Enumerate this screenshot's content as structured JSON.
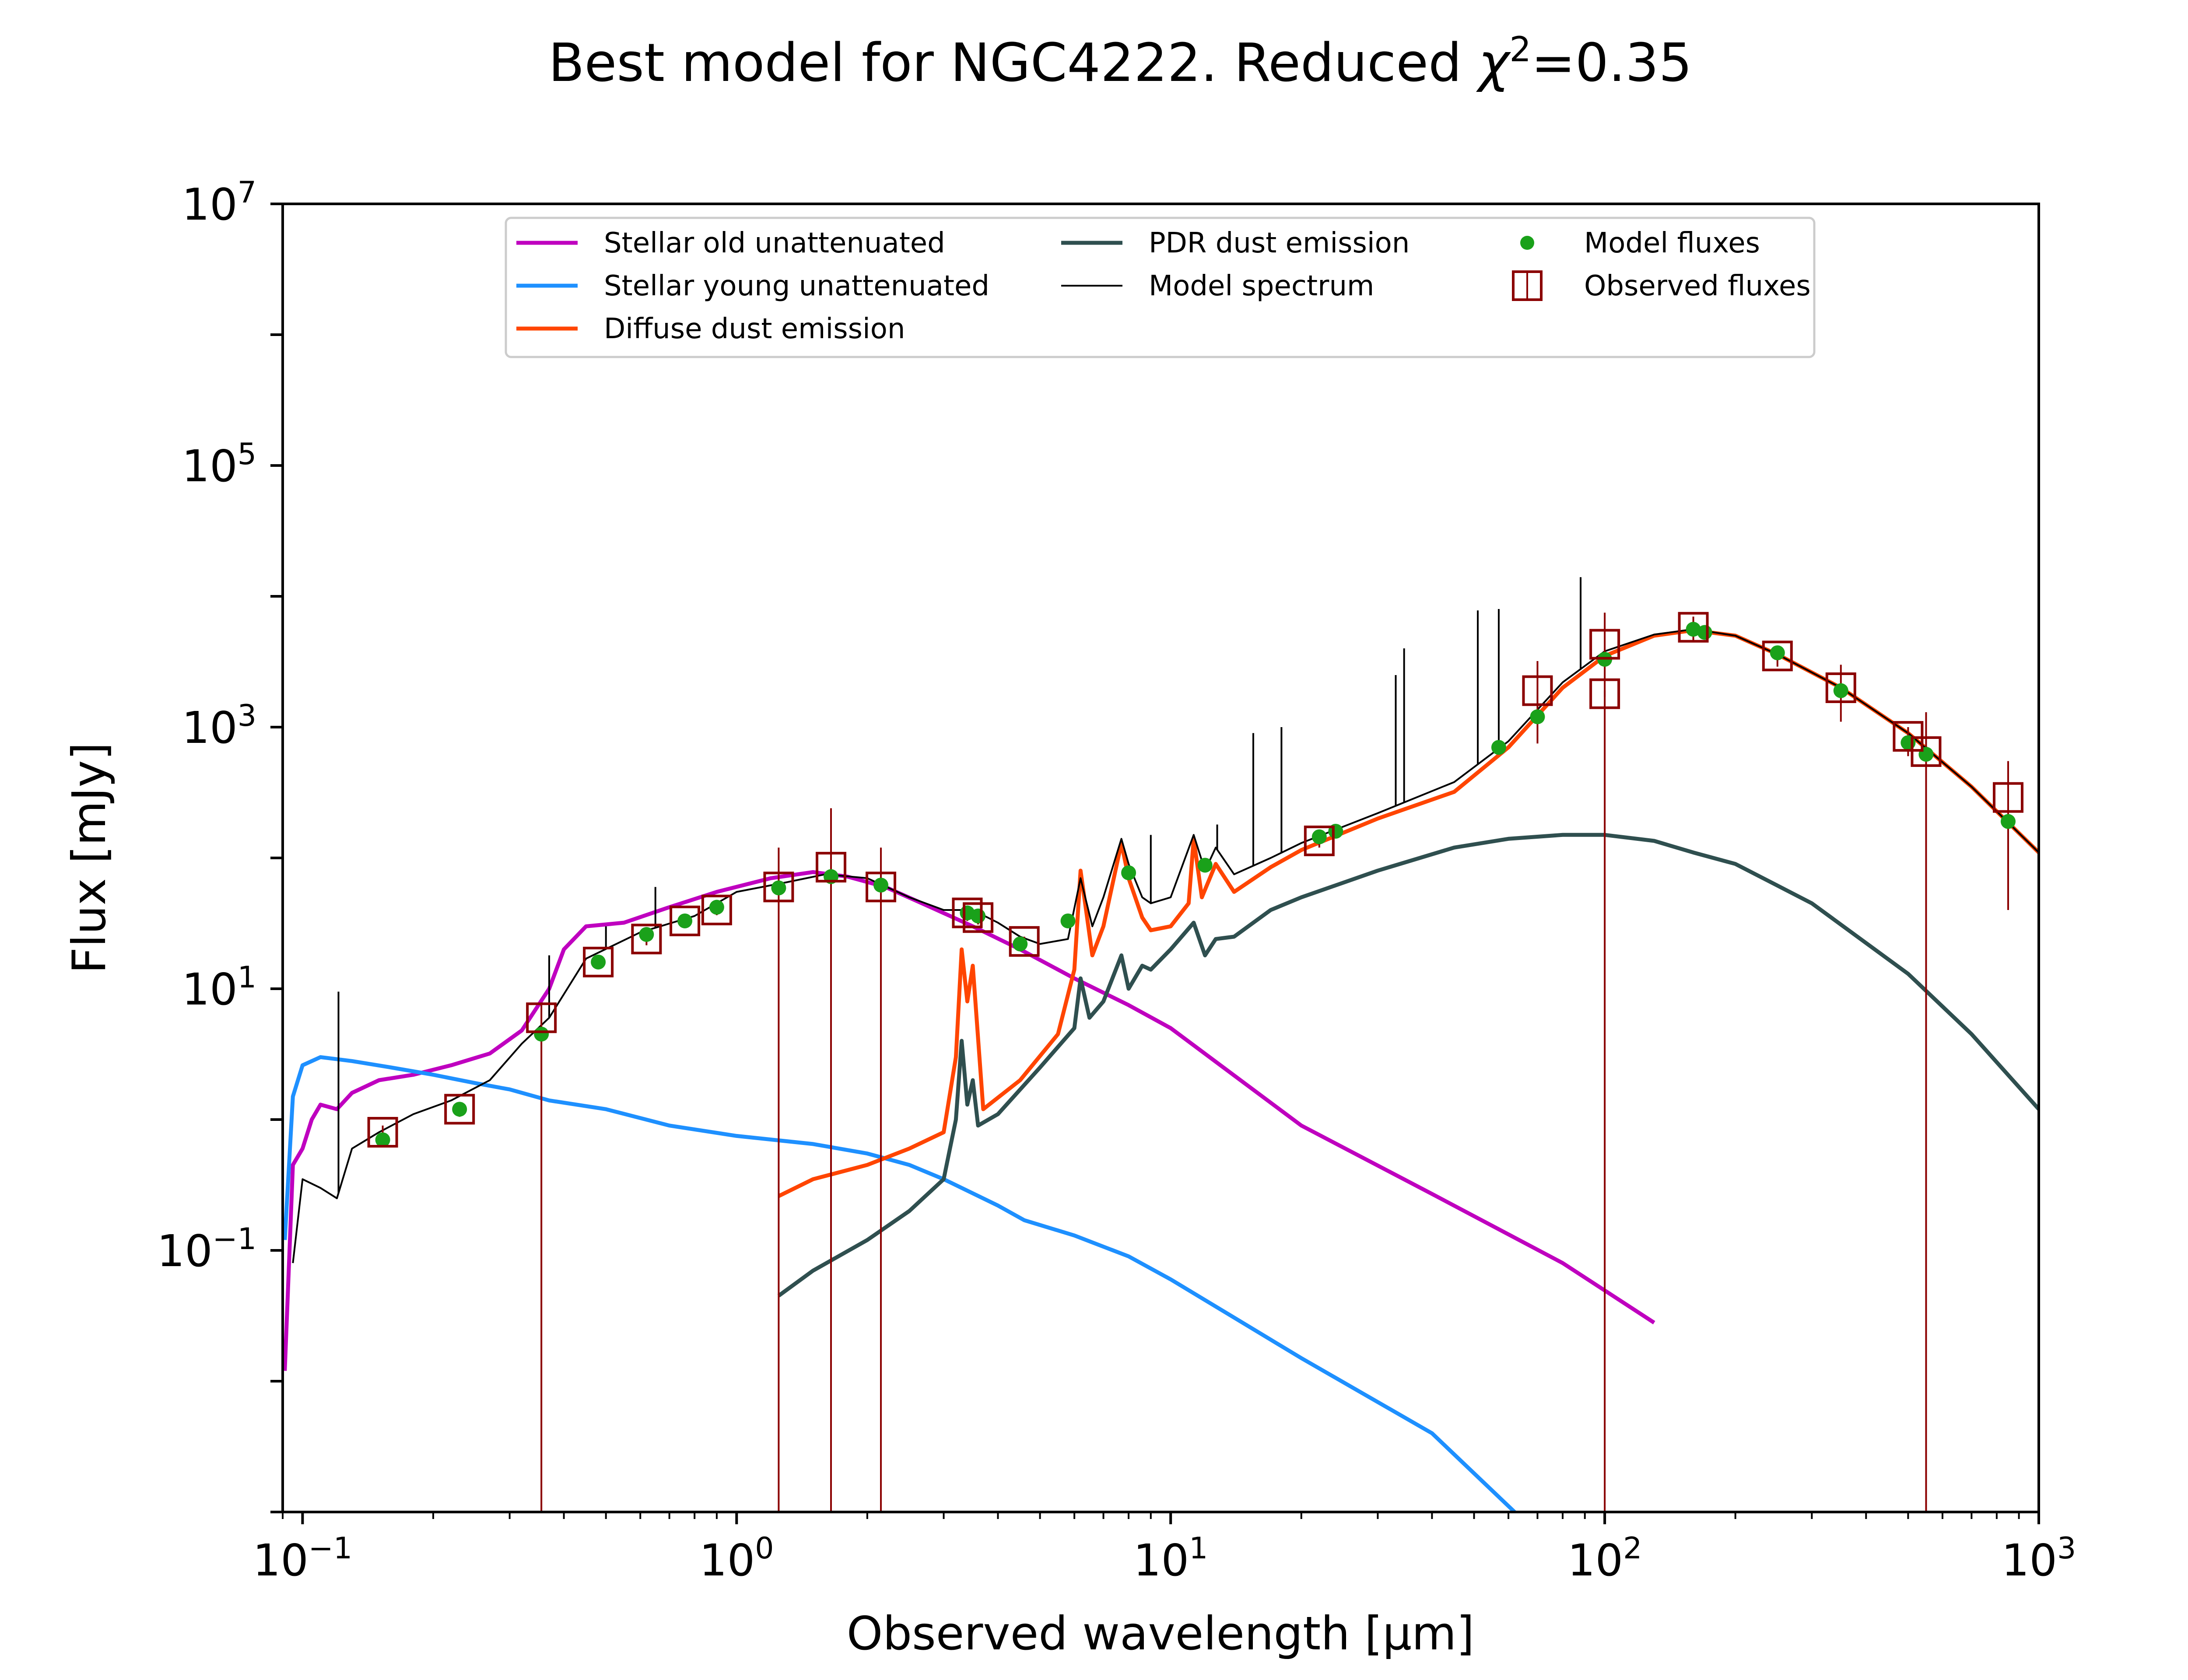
{
  "title": {
    "prefix": "Best model for NGC4222. Reduced ",
    "chi": "χ",
    "sup": "2",
    "suffix": "=0.35"
  },
  "axes": {
    "xlabel": "Observed wavelength [μm]",
    "ylabel": "Flux [mJy]",
    "xscale": "log",
    "yscale": "log",
    "xlim": [
      0.09,
      1000
    ],
    "ylim": [
      0.001,
      10000000
    ],
    "x_ticks": [
      {
        "base": "10",
        "exp": "−1",
        "value": 0.1
      },
      {
        "base": "10",
        "exp": "0",
        "value": 1
      },
      {
        "base": "10",
        "exp": "1",
        "value": 10
      },
      {
        "base": "10",
        "exp": "2",
        "value": 100
      },
      {
        "base": "10",
        "exp": "3",
        "value": 1000
      }
    ],
    "y_ticks": [
      {
        "base": "10",
        "exp": "−1",
        "value": 0.1
      },
      {
        "base": "10",
        "exp": "1",
        "value": 10
      },
      {
        "base": "10",
        "exp": "3",
        "value": 1000
      },
      {
        "base": "10",
        "exp": "5",
        "value": 100000
      },
      {
        "base": "10",
        "exp": "7",
        "value": 10000000
      }
    ]
  },
  "legend": {
    "placement": "top-center",
    "entries": [
      {
        "label": "Stellar old unattenuated",
        "kind": "line",
        "color": "#bf00bf"
      },
      {
        "label": "Stellar young unattenuated",
        "kind": "line",
        "color": "#1e90ff"
      },
      {
        "label": "Diffuse dust emission",
        "kind": "line",
        "color": "#ff4500"
      },
      {
        "label": "PDR dust emission",
        "kind": "line",
        "color": "#2f4f4f"
      },
      {
        "label": "Model spectrum",
        "kind": "thinline",
        "color": "#000000"
      },
      {
        "label": "Model fluxes",
        "kind": "dot",
        "color": "#1aa11a"
      },
      {
        "label": "Observed fluxes",
        "kind": "square",
        "color": "#8b0000"
      }
    ]
  },
  "chart_data": {
    "type": "line",
    "series": [
      {
        "name": "Stellar old unattenuated",
        "color": "#bf00bf",
        "x": [
          0.091,
          0.095,
          0.1,
          0.105,
          0.11,
          0.12,
          0.13,
          0.15,
          0.18,
          0.22,
          0.27,
          0.32,
          0.37,
          0.4,
          0.45,
          0.55,
          0.7,
          0.9,
          1.2,
          1.5,
          1.8,
          2.2,
          2.8,
          3.5,
          4.5,
          6,
          8,
          10,
          20,
          40,
          80,
          130
        ],
        "y": [
          0.012,
          0.45,
          0.6,
          1.0,
          1.3,
          1.2,
          1.6,
          2.0,
          2.2,
          2.6,
          3.2,
          4.8,
          10,
          20,
          30,
          32,
          42,
          55,
          70,
          78,
          72,
          60,
          42,
          30,
          20,
          12,
          7.5,
          5.0,
          0.9,
          0.27,
          0.08,
          0.028
        ]
      },
      {
        "name": "Stellar young unattenuated",
        "color": "#1e90ff",
        "x": [
          0.091,
          0.095,
          0.1,
          0.11,
          0.13,
          0.16,
          0.2,
          0.25,
          0.3,
          0.37,
          0.5,
          0.7,
          1.0,
          1.5,
          2.0,
          2.5,
          3.0,
          4.0,
          4.6,
          6,
          8,
          10,
          20,
          40,
          62
        ],
        "y": [
          0.12,
          1.5,
          2.6,
          3.0,
          2.8,
          2.5,
          2.2,
          1.9,
          1.7,
          1.4,
          1.2,
          0.9,
          0.75,
          0.65,
          0.55,
          0.45,
          0.35,
          0.22,
          0.17,
          0.13,
          0.09,
          0.06,
          0.015,
          0.004,
          0.001
        ]
      },
      {
        "name": "Diffuse dust emission",
        "color": "#ff4500",
        "x": [
          1.25,
          1.5,
          2.0,
          2.5,
          3.0,
          3.2,
          3.3,
          3.4,
          3.5,
          3.7,
          4.5,
          5.5,
          6.0,
          6.2,
          6.6,
          7.0,
          7.7,
          8.0,
          8.6,
          9.0,
          10.0,
          11.0,
          11.3,
          11.8,
          12.7,
          14.0,
          17.0,
          20.0,
          30.0,
          45.0,
          60.0,
          80.0,
          100.0,
          130.0,
          160.0,
          200.0,
          250.0,
          350.0,
          500.0,
          700.0,
          1000.0
        ],
        "y": [
          0.26,
          0.35,
          0.45,
          0.6,
          0.8,
          3.0,
          20.0,
          8.0,
          15.0,
          1.2,
          2.0,
          4.5,
          14.0,
          80.0,
          18.0,
          30.0,
          130.0,
          70.0,
          35.0,
          28.0,
          30.0,
          45.0,
          140.0,
          50.0,
          90.0,
          55.0,
          85.0,
          115.0,
          200.0,
          320.0,
          700.0,
          2000.0,
          3500.0,
          5000.0,
          5500.0,
          5000.0,
          3600.0,
          2000.0,
          900.0,
          350.0,
          110.0
        ]
      },
      {
        "name": "PDR dust emission",
        "color": "#2f4f4f",
        "x": [
          1.25,
          1.5,
          2.0,
          2.5,
          3.0,
          3.2,
          3.3,
          3.4,
          3.5,
          3.6,
          4.0,
          5.0,
          6.0,
          6.2,
          6.5,
          7.0,
          7.7,
          8.0,
          8.6,
          9.0,
          10.0,
          11.3,
          12.0,
          12.7,
          14.0,
          17.0,
          20.0,
          30.0,
          45.0,
          60.0,
          80.0,
          100.0,
          130.0,
          160.0,
          200.0,
          300.0,
          500.0,
          700.0,
          1000.0
        ],
        "y": [
          0.045,
          0.07,
          0.12,
          0.2,
          0.35,
          1.0,
          4.0,
          1.3,
          2.0,
          0.9,
          1.1,
          2.5,
          5.0,
          12.0,
          6.0,
          8.0,
          18.0,
          10.0,
          15.0,
          14.0,
          20.0,
          32.0,
          18.0,
          24.0,
          25.0,
          40.0,
          50.0,
          80.0,
          120.0,
          140.0,
          150.0,
          150.0,
          135.0,
          110.0,
          90.0,
          45.0,
          13.0,
          4.5,
          1.2
        ]
      },
      {
        "name": "Model spectrum",
        "color": "#000000",
        "x": [
          0.095,
          0.1,
          0.11,
          0.12,
          0.13,
          0.15,
          0.18,
          0.22,
          0.27,
          0.32,
          0.37,
          0.45,
          0.6,
          0.8,
          1.0,
          1.3,
          1.6,
          2.0,
          2.5,
          3.0,
          3.5,
          4.0,
          4.5,
          5.0,
          5.8,
          6.2,
          6.6,
          7.0,
          7.7,
          8.0,
          8.6,
          9.0,
          10.0,
          11.3,
          12.0,
          12.7,
          14.0,
          17.0,
          20.0,
          30.0,
          45.0,
          60.0,
          80.0,
          100.0,
          130.0,
          160.0,
          200.0,
          250.0,
          350.0,
          500.0,
          700.0,
          1000.0
        ],
        "y": [
          0.08,
          0.35,
          0.3,
          0.25,
          0.6,
          0.8,
          1.1,
          1.4,
          2.0,
          3.8,
          6.0,
          17.0,
          27.0,
          36.0,
          55.0,
          65.0,
          75.0,
          70.0,
          50.0,
          40.0,
          40.0,
          32.0,
          25.0,
          22.0,
          24.0,
          70.0,
          30.0,
          50.0,
          140.0,
          90.0,
          50.0,
          45.0,
          50.0,
          150.0,
          80.0,
          120.0,
          75.0,
          100.0,
          130.0,
          220.0,
          380.0,
          780.0,
          2200.0,
          3800.0,
          5100.0,
          5600.0,
          5000.0,
          3600.0,
          2000.0,
          900.0,
          350.0,
          110.0
        ]
      }
    ],
    "emission_lines": [
      {
        "x": 0.121,
        "y": 9.5
      },
      {
        "x": 0.37,
        "y": 18.0
      },
      {
        "x": 0.5,
        "y": 30.0
      },
      {
        "x": 0.65,
        "y": 60.0
      },
      {
        "x": 9.0,
        "y": 150.0
      },
      {
        "x": 12.8,
        "y": 180.0
      },
      {
        "x": 15.5,
        "y": 900.0
      },
      {
        "x": 18.0,
        "y": 1000.0
      },
      {
        "x": 33.0,
        "y": 2500.0
      },
      {
        "x": 34.5,
        "y": 4000.0
      },
      {
        "x": 51.0,
        "y": 7800.0
      },
      {
        "x": 57.0,
        "y": 8000.0
      },
      {
        "x": 88.0,
        "y": 14000.0
      }
    ],
    "model_fluxes": {
      "x": [
        0.153,
        0.23,
        0.355,
        0.48,
        0.62,
        0.76,
        0.9,
        1.25,
        1.65,
        2.15,
        3.4,
        3.6,
        4.5,
        5.8,
        8.0,
        12.0,
        22.0,
        24.0,
        57.0,
        70.0,
        100.0,
        160.0,
        170.0,
        250.0,
        350.0,
        500.0,
        550.0,
        850.0
      ],
      "y": [
        0.7,
        1.2,
        4.5,
        16.0,
        26.0,
        33.0,
        42.0,
        59.0,
        72.0,
        62.0,
        38.0,
        36.0,
        22.0,
        33.0,
        77.0,
        88.0,
        145.0,
        160.0,
        700.0,
        1200.0,
        3300.0,
        5600.0,
        5300.0,
        3700.0,
        1900.0,
        760.0,
        620.0,
        190.0
      ]
    },
    "observed_fluxes": {
      "x": [
        0.153,
        0.23,
        0.355,
        0.48,
        0.62,
        0.76,
        0.9,
        1.25,
        1.65,
        2.15,
        3.4,
        3.6,
        4.6,
        22.0,
        70.0,
        100.0,
        100.0,
        160.0,
        250.0,
        350.0,
        500.0,
        550.0,
        850.0
      ],
      "y": [
        0.8,
        1.2,
        6.0,
        16.0,
        24.0,
        33.0,
        40.0,
        60.0,
        85.0,
        60.0,
        38.0,
        35.0,
        23.0,
        135.0,
        1900.0,
        4300.0,
        1800.0,
        5800.0,
        3500.0,
        2000.0,
        850.0,
        650.0,
        290.0
      ],
      "err_low": [
        0.7,
        1.05,
        0.001,
        14.5,
        21.5,
        30.0,
        36.5,
        0.001,
        0.001,
        0.001,
        33.0,
        31.0,
        21.0,
        120.0,
        750.0,
        0.001,
        1700.0,
        4500.0,
        2900.0,
        1100.0,
        600.0,
        0.001,
        40.0
      ],
      "err_high": [
        0.9,
        1.35,
        7.5,
        17.5,
        26.5,
        36.0,
        43.5,
        120.0,
        240.0,
        120.0,
        43.0,
        39.0,
        25.0,
        150.0,
        3200.0,
        7500.0,
        1900.0,
        7000.0,
        4000.0,
        3000.0,
        1000.0,
        1300.0,
        550.0
      ]
    }
  }
}
